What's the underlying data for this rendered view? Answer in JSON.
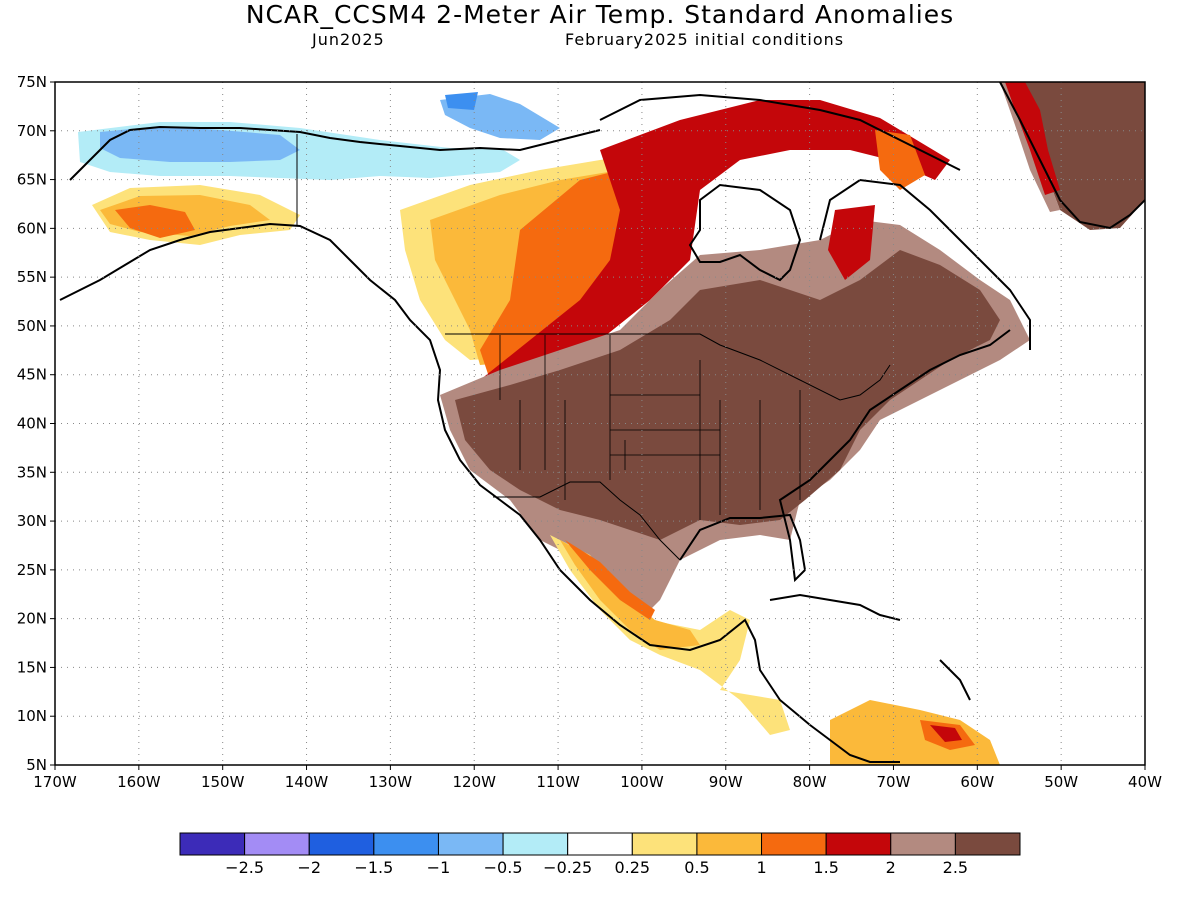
{
  "title": "NCAR_CCSM4 2-Meter Air Temp. Standard Anomalies",
  "valid_month": "Jun2025",
  "init_conditions": "February2025 initial conditions",
  "map": {
    "lon_range": [
      -170,
      -40
    ],
    "lat_range": [
      5,
      75
    ],
    "lat_labels": [
      "75N",
      "70N",
      "65N",
      "60N",
      "55N",
      "50N",
      "45N",
      "40N",
      "35N",
      "30N",
      "25N",
      "20N",
      "15N",
      "10N",
      "5N"
    ],
    "lon_labels": [
      "170W",
      "160W",
      "150W",
      "140W",
      "130W",
      "120W",
      "110W",
      "100W",
      "90W",
      "80W",
      "70W",
      "60W",
      "50W",
      "40W"
    ]
  },
  "colorbar": {
    "colors": [
      "#3c2bb8",
      "#a38cf5",
      "#1f5fe0",
      "#3c8ff0",
      "#7ab8f5",
      "#b3ecf7",
      "#ffffff",
      "#fde27a",
      "#fbb93a",
      "#f56a0f",
      "#c4060a",
      "#b38a80",
      "#7a4a3e"
    ],
    "labels": [
      "-2.5",
      "-2",
      "-1.5",
      "-1",
      "-0.5",
      "-0.25",
      "0.25",
      "0.5",
      "1",
      "1.5",
      "2",
      "2.5"
    ]
  }
}
